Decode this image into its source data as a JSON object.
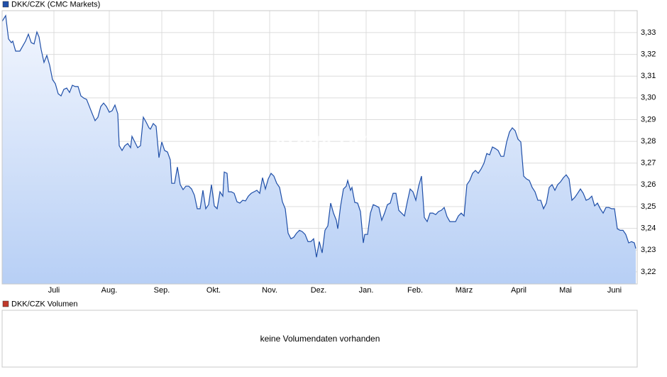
{
  "chart_data": {
    "type": "line",
    "series": [
      {
        "name": "DKK/CZK (CMC Markets)",
        "color": "#1f4fa8",
        "values": [
          3.3352,
          3.3378,
          3.3271,
          3.3254,
          3.3261,
          3.3215,
          3.3215,
          3.3238,
          3.3261,
          3.3293,
          3.3254,
          3.3248,
          3.3303,
          3.328,
          3.3222,
          3.3163,
          3.3195,
          3.315,
          3.3084,
          3.3065,
          3.3019,
          3.3009,
          3.3039,
          3.3045,
          3.3025,
          3.3058,
          3.3052,
          3.3052,
          3.3009,
          3.2999,
          3.2993,
          3.296,
          3.2927,
          3.2895,
          3.2911,
          3.296,
          3.2976,
          3.296,
          3.2934,
          3.2941,
          3.2967,
          3.2927,
          3.278,
          3.2758,
          3.278,
          3.279,
          3.2771,
          3.2823,
          3.2797,
          3.2771,
          3.278,
          3.2911,
          3.2888,
          3.2862,
          3.2856,
          3.2882,
          3.2869,
          3.2725,
          3.2797,
          3.2758,
          3.2751,
          3.2715,
          3.2607,
          3.2607,
          3.2682,
          3.2601,
          3.2578,
          3.2594,
          3.2594,
          3.2581,
          3.2552,
          3.249,
          3.249,
          3.2575,
          3.249,
          3.2509,
          3.2601,
          3.2503,
          3.249,
          3.2568,
          3.2548,
          3.2659,
          3.2653,
          3.2568,
          3.2568,
          3.2561,
          3.2522,
          3.2516,
          3.2529,
          3.2526,
          3.2548,
          3.2561,
          3.2568,
          3.2575,
          3.2561,
          3.2633,
          3.2581,
          3.2627,
          3.2653,
          3.264,
          3.2607,
          3.2588,
          3.2522,
          3.249,
          3.2378,
          3.2352,
          3.2359,
          3.2378,
          3.2391,
          3.2385,
          3.2372,
          3.2339,
          3.2339,
          3.2352,
          3.2267,
          3.2339,
          3.2287,
          3.2391,
          3.2411,
          3.2516,
          3.247,
          3.2437,
          3.2398,
          3.2503,
          3.2581,
          3.2594,
          3.262,
          3.2575,
          3.2588,
          3.2519,
          3.2516,
          3.2477,
          3.2333,
          3.2372,
          3.2372,
          3.247,
          3.2509,
          3.2503,
          3.2496,
          3.2437,
          3.247,
          3.2509,
          3.2516,
          3.2561,
          3.2561,
          3.2483,
          3.247,
          3.2457,
          3.2522,
          3.2581,
          3.2568,
          3.2529,
          3.2594,
          3.264,
          3.245,
          3.2431,
          3.247,
          3.247,
          3.2463,
          3.2477,
          3.2483,
          3.2496,
          3.2454,
          3.2431,
          3.2431,
          3.2431,
          3.2457,
          3.247,
          3.2457,
          3.2601,
          3.262,
          3.2653,
          3.2666,
          3.2653,
          3.2673,
          3.2699,
          3.2744,
          3.2738,
          3.2774,
          3.2767,
          3.2758,
          3.2731,
          3.2731,
          3.2797,
          3.2843,
          3.2862,
          3.2849,
          3.281,
          3.2797,
          3.264,
          3.2627,
          3.262,
          3.2588,
          3.2568,
          3.2529,
          3.2529,
          3.249,
          3.2516,
          3.2588,
          3.2601,
          3.2575,
          3.2601,
          3.2614,
          3.2633,
          3.2646,
          3.2627,
          3.2529,
          3.2542,
          3.2561,
          3.2581,
          3.2561,
          3.2529,
          3.2535,
          3.2548,
          3.2503,
          3.2516,
          3.249,
          3.247,
          3.2496,
          3.2496,
          3.249,
          3.249,
          3.2398,
          3.2391,
          3.2391,
          3.2372,
          3.2333,
          3.2339,
          3.2333,
          3.2307
        ]
      }
    ],
    "x": [
      0,
      1.25,
      2.25,
      3.25,
      3.75,
      4.75,
      6.25,
      7.25,
      8.25,
      9.25,
      10.25,
      11.25,
      12.25,
      13,
      13.75,
      14.75,
      15.75,
      16.75,
      17.75,
      18.75,
      19.75,
      20.75,
      21.75,
      22.75,
      23.75,
      24.75,
      25.75,
      26.75,
      27.75,
      28.75,
      29.75,
      30.75,
      31.75,
      32.75,
      33.75,
      34.75,
      35.75,
      36.75,
      37.75,
      38.75,
      39.75,
      40.75,
      41.25,
      42.25,
      43.25,
      44.25,
      45.25,
      45.75,
      46.75,
      47.75,
      48.75,
      49.75,
      50.75,
      51.75,
      52.25,
      53.25,
      54.25,
      55.25,
      56.25,
      57.25,
      58.25,
      59.25,
      59.75,
      60.75,
      61.75,
      62.75,
      63.75,
      64.75,
      65.75,
      66.75,
      67.75,
      68.75,
      69.75,
      70.75,
      71.75,
      72.75,
      73.75,
      74.75,
      75.75,
      76.75,
      77.75,
      78.25,
      79.25,
      79.75,
      80.75,
      81.75,
      82.75,
      83.75,
      84.75,
      85.75,
      86.75,
      87.75,
      88.75,
      89.75,
      90.75,
      91.75,
      92.75,
      93.75,
      94.75,
      95.75,
      96.75,
      97.75,
      98.75,
      99.75,
      100.75,
      101.75,
      102.75,
      103.75,
      104.75,
      105.75,
      106.75,
      107.75,
      108.75,
      109.75,
      110.75,
      111.75,
      112.75,
      113.75,
      114.75,
      115.75,
      116.75,
      117.75,
      118.25,
      119.25,
      120.25,
      121.25,
      121.75,
      122.75,
      123.25,
      124.25,
      125.25,
      126.25,
      127.25,
      127.75,
      128.75,
      129.75,
      130.75,
      131.75,
      132.75,
      133.75,
      134.75,
      135.75,
      136.75,
      137.75,
      138.75,
      139.75,
      140.75,
      141.75,
      142.75,
      143.75,
      144.75,
      145.75,
      146.75,
      147.75,
      148.75,
      149.75,
      150.75,
      151.75,
      152.75,
      153.75,
      154.75,
      155.75,
      156.75,
      157.75,
      158.75,
      159.75,
      160.75,
      161.75,
      162.75,
      163.75,
      164.75,
      165.75,
      166.75,
      167.75,
      168.75,
      169.75,
      170.75,
      171.75,
      172.75,
      173.75,
      174.75,
      175.75,
      176.75,
      177.75,
      178.75,
      179.75,
      180.75,
      181.75,
      182.75,
      183.75,
      184.75,
      185.75,
      186.75,
      187.75,
      188.75,
      189.75,
      190.75,
      191.75,
      192.75,
      193.75,
      194.75,
      195.75,
      196.75,
      197.75,
      198.75,
      199.75,
      200.75,
      201.75,
      202.75,
      203.75,
      204.75,
      205.75,
      206.75,
      207.75,
      208.75,
      209.75,
      210.75,
      211.75,
      212.75,
      213.75,
      214.75,
      215.75,
      216.75,
      217.75,
      218.75,
      219.75,
      220.75,
      221.75,
      222.75,
      223.25
    ],
    "xlim": [
      0,
      223.75
    ],
    "xticks": [
      {
        "value": 18.25,
        "label": "Juli"
      },
      {
        "value": 37.75,
        "label": "Aug."
      },
      {
        "value": 56.25,
        "label": "Sep."
      },
      {
        "value": 74.5,
        "label": "Okt."
      },
      {
        "value": 94.25,
        "label": "Nov."
      },
      {
        "value": 111.5,
        "label": "Dez."
      },
      {
        "value": 128.25,
        "label": "Jan."
      },
      {
        "value": 145.5,
        "label": "Feb."
      },
      {
        "value": 162.75,
        "label": "März"
      },
      {
        "value": 182,
        "label": "April"
      },
      {
        "value": 198.5,
        "label": "Mai"
      },
      {
        "value": 215.75,
        "label": "Juni"
      }
    ],
    "ylim": [
      3.2144,
      3.3401
    ],
    "yticks": [
      {
        "value": 3.22,
        "label": "3,22"
      },
      {
        "value": 3.23,
        "label": "3,23"
      },
      {
        "value": 3.24,
        "label": "3,24"
      },
      {
        "value": 3.25,
        "label": "3,25"
      },
      {
        "value": 3.26,
        "label": "3,26"
      },
      {
        "value": 3.27,
        "label": "3,27"
      },
      {
        "value": 3.28,
        "label": "3,28"
      },
      {
        "value": 3.29,
        "label": "3,29"
      },
      {
        "value": 3.3,
        "label": "3,30"
      },
      {
        "value": 3.31,
        "label": "3,31"
      },
      {
        "value": 3.32,
        "label": "3,32"
      },
      {
        "value": 3.33,
        "label": "3,33"
      }
    ],
    "grid": true,
    "watermark": "ARIVA.DE"
  },
  "volume_panel": {
    "legend": "DKK/CZK Volumen",
    "color": "#c0392b",
    "message": "keine Volumendaten vorhanden"
  }
}
